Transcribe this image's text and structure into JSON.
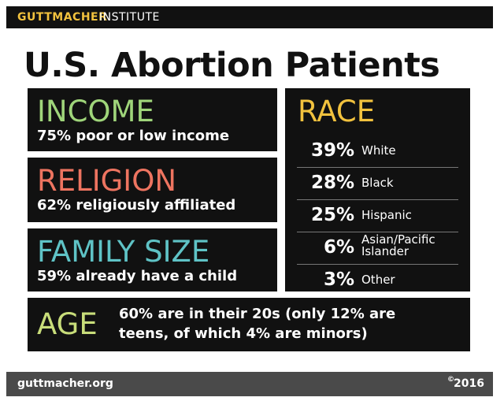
{
  "header": {
    "brand_bold": "GUTTMACHER",
    "brand_rest": "INSTITUTE"
  },
  "title": "U.S. Abortion Patients",
  "panels": [
    {
      "heading": "INCOME",
      "text": "75% poor or low income",
      "color": "#9fd57a"
    },
    {
      "heading": "RELIGION",
      "text": "62% religiously affiliated",
      "color": "#ee7460"
    },
    {
      "heading": "FAMILY SIZE",
      "text": "59% already have a child",
      "color": "#5fc3c6"
    }
  ],
  "race": {
    "heading": "RACE",
    "color": "#f2c23e",
    "rows": [
      {
        "value": "39%",
        "label": "White"
      },
      {
        "value": "28%",
        "label": "Black"
      },
      {
        "value": "25%",
        "label": "Hispanic"
      },
      {
        "value": "6%",
        "label": "Asian/Pacific Islander"
      },
      {
        "value": "3%",
        "label": "Other"
      }
    ]
  },
  "age": {
    "heading": "AGE",
    "color": "#c8dd7a",
    "lines": [
      "60% are in their 20s (only 12% are",
      "teens, of which 4% are minors)"
    ]
  },
  "footer": {
    "url": "guttmacher.org",
    "copyright_symbol": "©",
    "year": "2016"
  }
}
